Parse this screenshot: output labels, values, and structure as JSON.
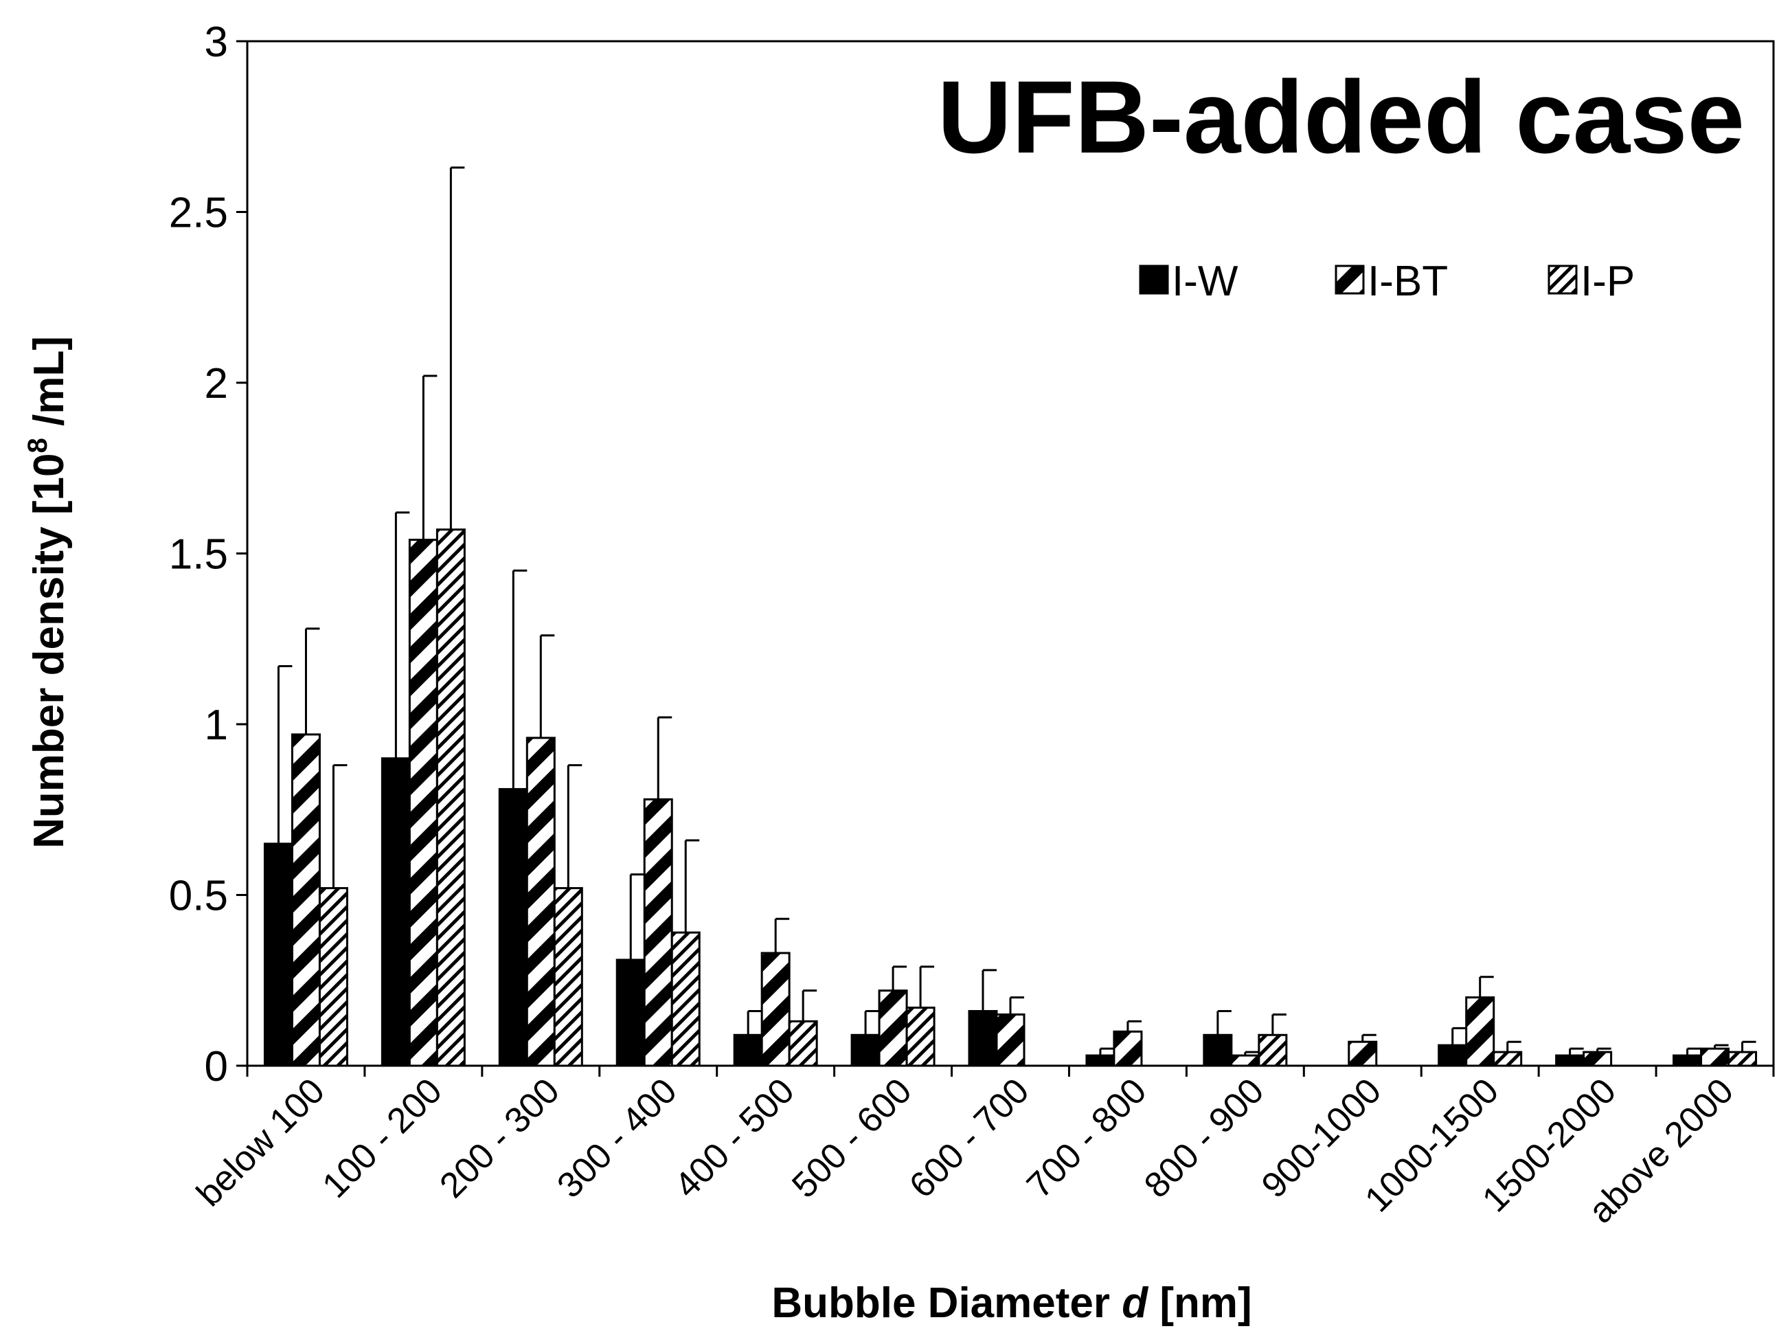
{
  "chart_data": {
    "type": "bar",
    "title": "UFB-added case",
    "xlabel": "Bubble Diameter d [nm]",
    "xlabel_parts": [
      "Bubble Diameter ",
      "d",
      " [nm]"
    ],
    "ylabel": "Number density [10⁸ /mL]",
    "ylabel_parts": [
      "Number density [10",
      "8",
      " /mL]"
    ],
    "ylim": [
      0,
      3
    ],
    "yticks": [
      "0",
      "0.5",
      "1",
      "1.5",
      "2",
      "2.5",
      "3"
    ],
    "grid": false,
    "legend_position": "top-right",
    "categories": [
      "below 100",
      "100 - 200",
      "200 - 300",
      "300 - 400",
      "400 - 500",
      "500 - 600",
      "600 - 700",
      "700 - 800",
      "800 - 900",
      "900-1000",
      "1000-1500",
      "1500-2000",
      "above 2000"
    ],
    "series": [
      {
        "name": "I-W",
        "pattern": "solid",
        "values": [
          0.65,
          0.9,
          0.81,
          0.31,
          0.09,
          0.09,
          0.16,
          0.03,
          0.09,
          0.0,
          0.06,
          0.03,
          0.03
        ],
        "errors": [
          0.52,
          0.72,
          0.64,
          0.25,
          0.07,
          0.07,
          0.12,
          0.02,
          0.07,
          0.0,
          0.05,
          0.02,
          0.02
        ]
      },
      {
        "name": "I-BT",
        "pattern": "wide-diagonal-stripes",
        "values": [
          0.97,
          1.54,
          0.96,
          0.78,
          0.33,
          0.22,
          0.15,
          0.1,
          0.03,
          0.07,
          0.2,
          0.04,
          0.05
        ],
        "errors": [
          0.31,
          0.48,
          0.3,
          0.24,
          0.1,
          0.07,
          0.05,
          0.03,
          0.01,
          0.02,
          0.06,
          0.01,
          0.01
        ]
      },
      {
        "name": "I-P",
        "pattern": "fine-diagonal-stripes",
        "values": [
          0.52,
          1.57,
          0.52,
          0.39,
          0.13,
          0.17,
          0.0,
          0.0,
          0.09,
          0.0,
          0.04,
          0.0,
          0.04
        ],
        "errors": [
          0.36,
          1.06,
          0.36,
          0.27,
          0.09,
          0.12,
          0.0,
          0.0,
          0.06,
          0.0,
          0.03,
          0.0,
          0.03
        ]
      }
    ]
  }
}
